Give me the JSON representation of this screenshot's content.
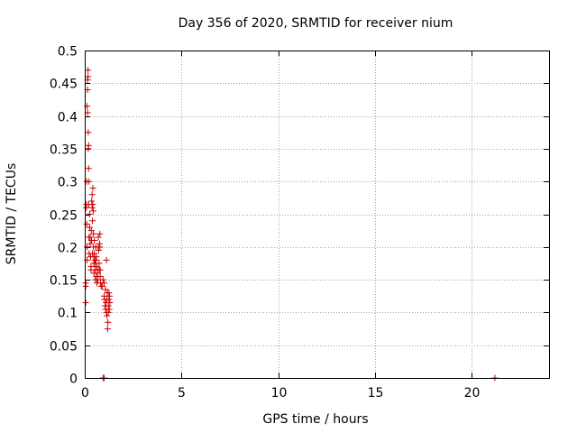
{
  "chart_data": {
    "type": "scatter",
    "title": "Day 356 of 2020, SRMTID for receiver nium",
    "xlabel": "GPS time / hours",
    "ylabel": "SRMTID / TECUs",
    "xlim": [
      0,
      24
    ],
    "ylim": [
      0,
      0.5
    ],
    "xticks": [
      0,
      5,
      10,
      15,
      20
    ],
    "yticks": [
      0,
      0.05,
      0.1,
      0.15,
      0.2,
      0.25,
      0.3,
      0.35,
      0.4,
      0.45,
      0.5
    ],
    "xtick_labels": [
      "0",
      "5",
      "10",
      "15",
      "20"
    ],
    "ytick_labels": [
      "0",
      "0.05",
      "0.1",
      "0.15",
      "0.2",
      "0.25",
      "0.3",
      "0.35",
      "0.4",
      "0.45",
      "0.5"
    ],
    "grid": true,
    "marker": "+",
    "color": "#cc0000",
    "series": [
      {
        "name": "SRMTID",
        "points": [
          [
            0.05,
            0.115
          ],
          [
            0.05,
            0.14
          ],
          [
            0.05,
            0.145
          ],
          [
            0.08,
            0.26
          ],
          [
            0.08,
            0.265
          ],
          [
            0.1,
            0.235
          ],
          [
            0.1,
            0.3
          ],
          [
            0.12,
            0.2
          ],
          [
            0.12,
            0.18
          ],
          [
            0.12,
            0.415
          ],
          [
            0.15,
            0.405
          ],
          [
            0.15,
            0.44
          ],
          [
            0.15,
            0.455
          ],
          [
            0.17,
            0.47
          ],
          [
            0.17,
            0.46
          ],
          [
            0.18,
            0.375
          ],
          [
            0.18,
            0.35
          ],
          [
            0.2,
            0.355
          ],
          [
            0.2,
            0.32
          ],
          [
            0.2,
            0.265
          ],
          [
            0.22,
            0.3
          ],
          [
            0.22,
            0.215
          ],
          [
            0.23,
            0.19
          ],
          [
            0.25,
            0.25
          ],
          [
            0.25,
            0.23
          ],
          [
            0.28,
            0.205
          ],
          [
            0.28,
            0.215
          ],
          [
            0.3,
            0.185
          ],
          [
            0.32,
            0.17
          ],
          [
            0.32,
            0.165
          ],
          [
            0.34,
            0.225
          ],
          [
            0.35,
            0.21
          ],
          [
            0.36,
            0.27
          ],
          [
            0.38,
            0.28
          ],
          [
            0.38,
            0.26
          ],
          [
            0.4,
            0.24
          ],
          [
            0.4,
            0.19
          ],
          [
            0.42,
            0.29
          ],
          [
            0.42,
            0.265
          ],
          [
            0.44,
            0.255
          ],
          [
            0.45,
            0.22
          ],
          [
            0.45,
            0.2
          ],
          [
            0.47,
            0.185
          ],
          [
            0.47,
            0.175
          ],
          [
            0.48,
            0.16
          ],
          [
            0.5,
            0.21
          ],
          [
            0.5,
            0.19
          ],
          [
            0.52,
            0.18
          ],
          [
            0.53,
            0.165
          ],
          [
            0.55,
            0.175
          ],
          [
            0.55,
            0.15
          ],
          [
            0.57,
            0.2
          ],
          [
            0.58,
            0.18
          ],
          [
            0.6,
            0.185
          ],
          [
            0.6,
            0.155
          ],
          [
            0.62,
            0.17
          ],
          [
            0.63,
            0.145
          ],
          [
            0.65,
            0.165
          ],
          [
            0.66,
            0.16
          ],
          [
            0.68,
            0.15
          ],
          [
            0.7,
            0.2
          ],
          [
            0.7,
            0.215
          ],
          [
            0.72,
            0.195
          ],
          [
            0.74,
            0.175
          ],
          [
            0.75,
            0.165
          ],
          [
            0.77,
            0.205
          ],
          [
            0.78,
            0.2
          ],
          [
            0.78,
            0.22
          ],
          [
            0.8,
            0.165
          ],
          [
            0.8,
            0.155
          ],
          [
            0.82,
            0.145
          ],
          [
            0.85,
            0.14
          ],
          [
            0.9,
            0.14
          ],
          [
            0.95,
            0.15
          ],
          [
            1.0,
            0.145
          ],
          [
            1.0,
            0.125
          ],
          [
            1.02,
            0.12
          ],
          [
            1.05,
            0.11
          ],
          [
            1.07,
            0.135
          ],
          [
            1.08,
            0.105
          ],
          [
            1.1,
            0.115
          ],
          [
            1.12,
            0.1
          ],
          [
            1.12,
            0.18
          ],
          [
            1.15,
            0.12
          ],
          [
            1.15,
            0.095
          ],
          [
            1.17,
            0.13
          ],
          [
            1.18,
            0.075
          ],
          [
            1.2,
            0.085
          ],
          [
            1.22,
            0.11
          ],
          [
            1.22,
            0.1
          ],
          [
            1.25,
            0.12
          ],
          [
            1.25,
            0.13
          ],
          [
            1.27,
            0.105
          ],
          [
            1.28,
            0.125
          ],
          [
            1.3,
            0.115
          ],
          [
            0.95,
            0.0
          ],
          [
            1.0,
            0.0
          ],
          [
            21.2,
            0.0
          ]
        ]
      }
    ]
  }
}
